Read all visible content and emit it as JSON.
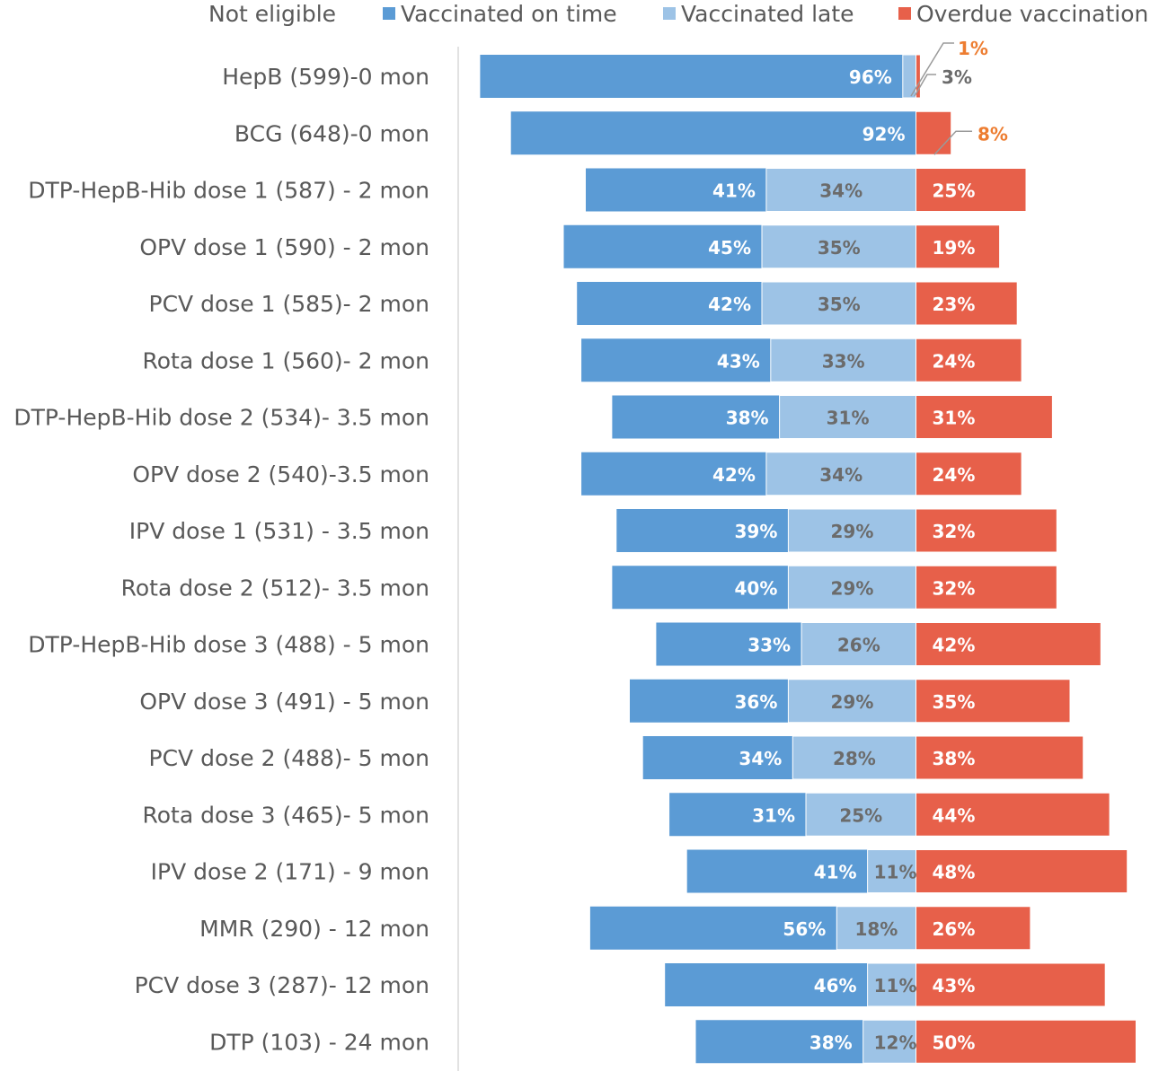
{
  "colors": {
    "on_time": "#5b9bd5",
    "late": "#9dc3e6",
    "overdue": "#e7604a",
    "on_time_text": "#ffffff",
    "late_text": "#6b6b6b",
    "overdue_text": "#ffffff",
    "callout_orange": "#ed7d31",
    "callout_gray": "#6b6b6b",
    "axis": "#d9d9d9"
  },
  "chart_data": {
    "type": "bar",
    "orientation": "horizontal",
    "stacked": "diverging",
    "legend": {
      "placement": "top",
      "entries": [
        "Not eligible",
        "Vaccinated on time",
        "Vaccinated late",
        "Overdue vaccination"
      ]
    },
    "grid": false,
    "categories": [
      "HepB (599)-0 mon",
      "BCG (648)-0 mon",
      "DTP-HepB-Hib dose 1 (587) - 2 mon",
      "OPV dose 1 (590) - 2 mon",
      "PCV dose 1 (585)- 2 mon",
      "Rota dose 1 (560)- 2 mon",
      "DTP-HepB-Hib dose 2 (534)- 3.5 mon",
      "OPV dose 2 (540)-3.5 mon",
      "IPV dose 1 (531) - 3.5 mon",
      "Rota dose 2 (512)- 3.5 mon",
      "DTP-HepB-Hib dose 3 (488) - 5 mon",
      "OPV dose 3 (491) - 5 mon",
      "PCV dose 2 (488)- 5 mon",
      "Rota dose 3 (465)- 5 mon",
      "IPV dose 2 (171) - 9 mon",
      "MMR (290) - 12 mon",
      "PCV dose 3 (287)- 12 mon",
      "DTP (103) - 24 mon"
    ],
    "series": [
      {
        "name": "Vaccinated on time",
        "values": [
          96,
          92,
          41,
          45,
          42,
          43,
          38,
          42,
          39,
          40,
          33,
          36,
          34,
          31,
          41,
          56,
          46,
          38
        ]
      },
      {
        "name": "Vaccinated late",
        "values": [
          3,
          0,
          34,
          35,
          35,
          33,
          31,
          34,
          29,
          29,
          26,
          29,
          28,
          25,
          11,
          18,
          11,
          12
        ]
      },
      {
        "name": "Overdue vaccination",
        "values": [
          1,
          8,
          25,
          19,
          23,
          24,
          31,
          24,
          32,
          32,
          42,
          35,
          38,
          44,
          48,
          26,
          43,
          50
        ]
      }
    ],
    "labels": {
      "on_time": [
        "96%",
        "92%",
        "41%",
        "45%",
        "42%",
        "43%",
        "38%",
        "42%",
        "39%",
        "40%",
        "33%",
        "36%",
        "34%",
        "31%",
        "41%",
        "56%",
        "46%",
        "38%"
      ],
      "late": [
        "3%",
        "",
        "34%",
        "35%",
        "35%",
        "33%",
        "31%",
        "34%",
        "29%",
        "29%",
        "26%",
        "29%",
        "28%",
        "25%",
        "11%",
        "18%",
        "11%",
        "12%"
      ],
      "overdue": [
        "1%",
        "8%",
        "25%",
        "19%",
        "23%",
        "24%",
        "31%",
        "24%",
        "32%",
        "32%",
        "42%",
        "35%",
        "38%",
        "44%",
        "48%",
        "26%",
        "43%",
        "50%"
      ]
    }
  }
}
